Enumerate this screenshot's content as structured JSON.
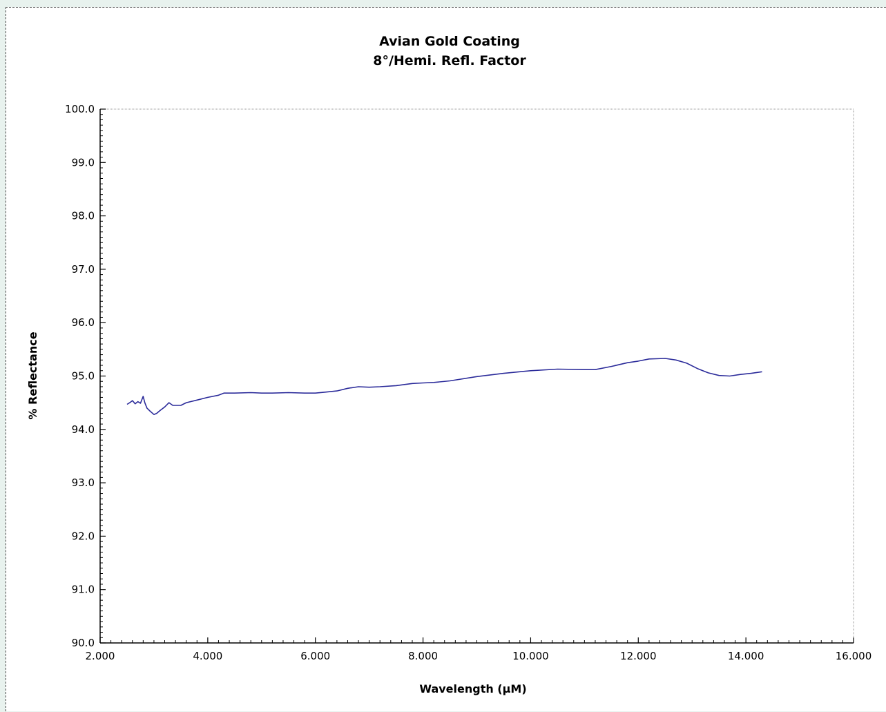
{
  "chart_data": {
    "type": "line",
    "title": "Avian Gold Coating",
    "subtitle": "8°/Hemi. Refl. Factor",
    "xlabel": "Wavelength (µM)",
    "ylabel": "% Reflectance",
    "xlim": [
      2.0,
      16.0
    ],
    "ylim": [
      90.0,
      100.0
    ],
    "x_ticks": [
      "2.000",
      "4.000",
      "6.000",
      "8.000",
      "10.000",
      "12.000",
      "14.000",
      "16.000"
    ],
    "y_ticks": [
      "90.0",
      "91.0",
      "92.0",
      "93.0",
      "94.0",
      "95.0",
      "96.0",
      "97.0",
      "98.0",
      "99.0",
      "100.0"
    ],
    "grid": false,
    "series": [
      {
        "color": "#2b2b9a",
        "x": [
          2.5,
          2.55,
          2.6,
          2.65,
          2.7,
          2.75,
          2.8,
          2.83,
          2.87,
          2.93,
          3.0,
          3.05,
          3.12,
          3.2,
          3.28,
          3.35,
          3.5,
          3.6,
          3.8,
          4.0,
          4.2,
          4.3,
          4.5,
          4.8,
          5.0,
          5.2,
          5.5,
          5.8,
          6.0,
          6.2,
          6.4,
          6.6,
          6.8,
          7.0,
          7.2,
          7.5,
          7.8,
          8.0,
          8.2,
          8.5,
          9.0,
          9.5,
          10.0,
          10.5,
          11.0,
          11.2,
          11.5,
          11.8,
          12.0,
          12.2,
          12.5,
          12.7,
          12.9,
          13.1,
          13.3,
          13.5,
          13.7,
          13.9,
          14.1,
          14.3
        ],
        "y": [
          94.47,
          94.5,
          94.54,
          94.48,
          94.52,
          94.49,
          94.62,
          94.5,
          94.4,
          94.34,
          94.28,
          94.3,
          94.36,
          94.42,
          94.5,
          94.45,
          94.45,
          94.5,
          94.55,
          94.6,
          94.64,
          94.68,
          94.68,
          94.69,
          94.68,
          94.68,
          94.69,
          94.68,
          94.68,
          94.7,
          94.72,
          94.77,
          94.8,
          94.79,
          94.8,
          94.82,
          94.86,
          94.87,
          94.88,
          94.91,
          94.99,
          95.05,
          95.1,
          95.13,
          95.12,
          95.12,
          95.18,
          95.25,
          95.28,
          95.32,
          95.33,
          95.3,
          95.24,
          95.14,
          95.06,
          95.01,
          95.0,
          95.03,
          95.05,
          95.08
        ]
      }
    ]
  }
}
